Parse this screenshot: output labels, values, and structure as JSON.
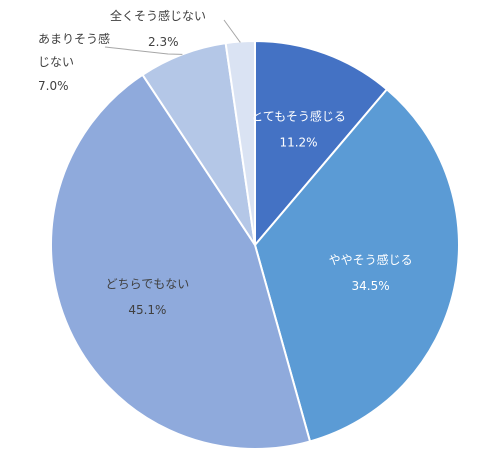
{
  "chart_data": {
    "type": "pie",
    "start": "12 o'clock",
    "direction": "clockwise",
    "slices": [
      {
        "label": "とてもそう感じる",
        "display": "11.2%",
        "value": 11.2,
        "color": "#4472C4",
        "label_color": "#ffffff",
        "label_position": "inside"
      },
      {
        "label": "ややそう感じる",
        "display": "34.5%",
        "value": 34.5,
        "color": "#5B9BD5",
        "label_color": "#ffffff",
        "label_position": "inside"
      },
      {
        "label": "どちらでもない",
        "display": "45.1%",
        "value": 45.1,
        "color": "#8FAADC",
        "label_color": "#404040",
        "label_position": "inside"
      },
      {
        "label": "あまりそう感じない",
        "label_lines": [
          "あまりそう感",
          "じない"
        ],
        "display": "7.0%",
        "value": 7.0,
        "color": "#B4C7E7",
        "label_color": "#404040",
        "label_position": "outside"
      },
      {
        "label": "全くそう感じない",
        "display": "2.3%",
        "value": 2.3,
        "color": "#DAE3F3",
        "label_color": "#404040",
        "label_position": "outside"
      }
    ],
    "legend": "none",
    "slice_border_color": "#ffffff",
    "leader_line_color": "#A6A6A6"
  }
}
